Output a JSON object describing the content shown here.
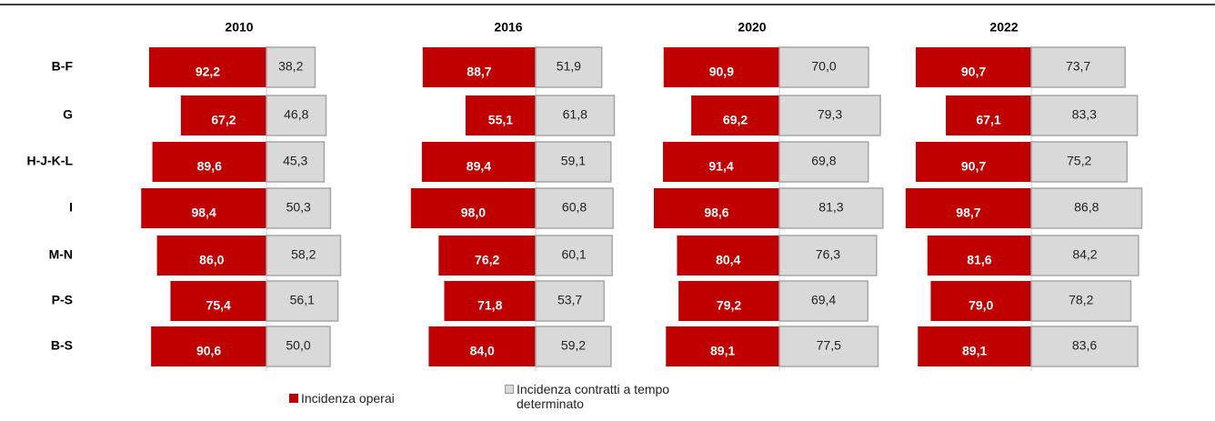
{
  "chart_data": {
    "type": "bar",
    "categories": [
      "B-F",
      "G",
      "H-J-K-L",
      "I",
      "M-N",
      "P-S",
      "B-S"
    ],
    "legend": [
      {
        "name": "Incidenza operai",
        "color": "#c00000"
      },
      {
        "name": "Incidenza contratti a tempo determinato",
        "color": "#d9d9d9"
      }
    ],
    "panels": [
      {
        "title": "2010",
        "series": [
          {
            "values": [
              92.2,
              67.2,
              89.6,
              98.4,
              86.0,
              75.4,
              90.6
            ],
            "value_labels": [
              "92,2",
              "67,2",
              "89,6",
              "98,4",
              "86,0",
              "75,4",
              "90,6"
            ]
          },
          {
            "values": [
              38.2,
              46.8,
              45.3,
              50.3,
              58.2,
              56.1,
              50.0
            ],
            "value_labels": [
              "38,2",
              "46,8",
              "45,3",
              "50,3",
              "58,2",
              "56,1",
              "50,0"
            ]
          }
        ]
      },
      {
        "title": "2016",
        "series": [
          {
            "values": [
              88.7,
              55.1,
              89.4,
              98.0,
              76.2,
              71.8,
              84.0
            ],
            "value_labels": [
              "88,7",
              "55,1",
              "89,4",
              "98,0",
              "76,2",
              "71,8",
              "84,0"
            ]
          },
          {
            "values": [
              51.9,
              61.8,
              59.1,
              60.8,
              60.1,
              53.7,
              59.2
            ],
            "value_labels": [
              "51,9",
              "61,8",
              "59,1",
              "60,8",
              "60,1",
              "53,7",
              "59,2"
            ]
          }
        ]
      },
      {
        "title": "2020",
        "series": [
          {
            "values": [
              90.9,
              69.2,
              91.4,
              98.6,
              80.4,
              79.2,
              89.1
            ],
            "value_labels": [
              "90,9",
              "69,2",
              "91,4",
              "98,6",
              "80,4",
              "79,2",
              "89,1"
            ]
          },
          {
            "values": [
              70.0,
              79.3,
              69.8,
              81.3,
              76.3,
              69.4,
              77.5
            ],
            "value_labels": [
              "70,0",
              "79,3",
              "69,8",
              "81,3",
              "76,3",
              "69,4",
              "77,5"
            ]
          }
        ]
      },
      {
        "title": "2022",
        "series": [
          {
            "values": [
              90.7,
              67.1,
              90.7,
              98.7,
              81.6,
              79.0,
              89.1
            ],
            "value_labels": [
              "90,7",
              "67,1",
              "90,7",
              "98,7",
              "81,6",
              "79,0",
              "89,1"
            ]
          },
          {
            "values": [
              73.7,
              83.3,
              75.2,
              86.8,
              84.2,
              78.2,
              83.6
            ],
            "value_labels": [
              "73,7",
              "83,3",
              "75,2",
              "86,8",
              "84,2",
              "78,2",
              "83,6"
            ]
          }
        ]
      }
    ]
  }
}
